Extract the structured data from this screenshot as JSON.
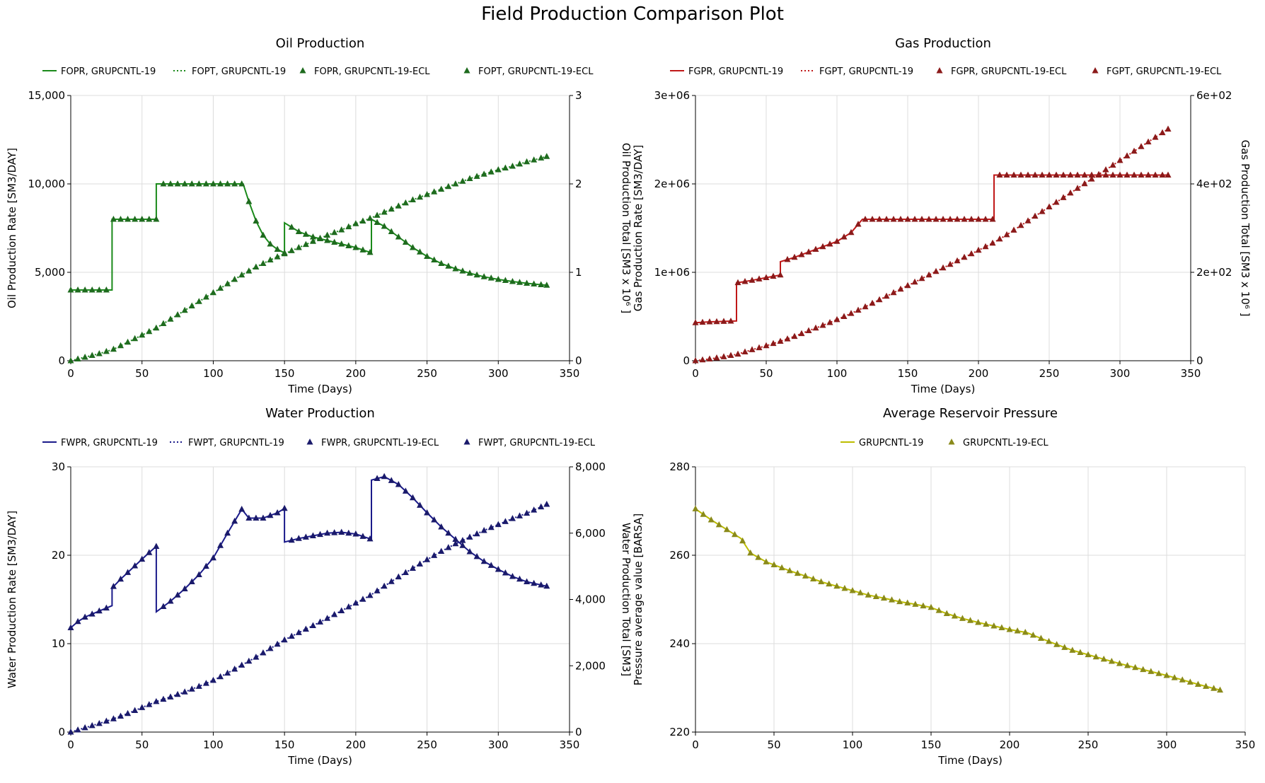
{
  "figure_title": "Field Production Comparison Plot",
  "chart_data": [
    {
      "id": "oil",
      "type": "line",
      "title": "Oil Production",
      "xlabel": "Time (Days)",
      "ylabel": "Oil Production Rate [SM3/DAY]",
      "y2label": "Oil Production Total [SM3 x 10⁶ ]",
      "xlim": [
        0,
        350
      ],
      "xticks": [
        0,
        50,
        100,
        150,
        200,
        250,
        300,
        350
      ],
      "xtick_labels": [
        "0",
        "50",
        "100",
        "150",
        "200",
        "250",
        "300",
        "350"
      ],
      "ylim": [
        0,
        15000
      ],
      "yticks": [
        0,
        5000,
        10000,
        15000
      ],
      "ytick_labels": [
        "0",
        "5,000",
        "10,000",
        "15,000"
      ],
      "y2lim": [
        0,
        3
      ],
      "y2ticks": [
        0,
        1,
        2,
        3
      ],
      "y2tick_labels": [
        "0",
        "1",
        "2",
        "3"
      ],
      "grid": true,
      "legend_position": "top",
      "color": "#1a8a1a",
      "marker_color": "#1e6b1e",
      "legend": [
        {
          "label": "FOPR, GRUPCNTL-19",
          "style": "line"
        },
        {
          "label": "FOPT, GRUPCNTL-19",
          "style": "dotted"
        },
        {
          "label": "FOPR, GRUPCNTL-19-ECL",
          "style": "marker"
        },
        {
          "label": "FOPT, GRUPCNTL-19-ECL",
          "style": "marker"
        }
      ],
      "rate_points": [
        [
          0,
          4000
        ],
        [
          29,
          4000
        ],
        [
          29,
          8000
        ],
        [
          60,
          8000
        ],
        [
          60,
          10000
        ],
        [
          121,
          10000
        ],
        [
          125,
          9000
        ],
        [
          130,
          7900
        ],
        [
          135,
          7100
        ],
        [
          140,
          6600
        ],
        [
          145,
          6300
        ],
        [
          150,
          6100
        ],
        [
          150,
          7800
        ],
        [
          160,
          7300
        ],
        [
          170,
          7000
        ],
        [
          180,
          6800
        ],
        [
          190,
          6600
        ],
        [
          200,
          6400
        ],
        [
          211,
          6100
        ],
        [
          211,
          8000
        ],
        [
          220,
          7600
        ],
        [
          230,
          7000
        ],
        [
          240,
          6400
        ],
        [
          250,
          5900
        ],
        [
          260,
          5500
        ],
        [
          270,
          5200
        ],
        [
          280,
          4950
        ],
        [
          290,
          4750
        ],
        [
          300,
          4600
        ],
        [
          310,
          4480
        ],
        [
          320,
          4380
        ],
        [
          334,
          4270
        ]
      ],
      "total_points": [
        [
          0,
          0
        ],
        [
          10,
          0.04
        ],
        [
          20,
          0.08
        ],
        [
          30,
          0.13
        ],
        [
          40,
          0.21
        ],
        [
          50,
          0.29
        ],
        [
          60,
          0.37
        ],
        [
          70,
          0.47
        ],
        [
          80,
          0.57
        ],
        [
          90,
          0.67
        ],
        [
          100,
          0.77
        ],
        [
          110,
          0.87
        ],
        [
          120,
          0.97
        ],
        [
          130,
          1.06
        ],
        [
          140,
          1.14
        ],
        [
          150,
          1.21
        ],
        [
          160,
          1.28
        ],
        [
          170,
          1.35
        ],
        [
          180,
          1.42
        ],
        [
          190,
          1.48
        ],
        [
          200,
          1.55
        ],
        [
          210,
          1.61
        ],
        [
          220,
          1.68
        ],
        [
          230,
          1.75
        ],
        [
          240,
          1.82
        ],
        [
          250,
          1.88
        ],
        [
          260,
          1.94
        ],
        [
          270,
          2.0
        ],
        [
          280,
          2.06
        ],
        [
          290,
          2.11
        ],
        [
          300,
          2.16
        ],
        [
          310,
          2.2
        ],
        [
          320,
          2.25
        ],
        [
          334,
          2.31
        ]
      ]
    },
    {
      "id": "gas",
      "type": "line",
      "title": "Gas Production",
      "xlabel": "Time (Days)",
      "ylabel": "Gas Production Rate [SM3/DAY]",
      "y2label": "Gas Production Total [SM3 x 10⁶ ]",
      "xlim": [
        0,
        350
      ],
      "xticks": [
        0,
        50,
        100,
        150,
        200,
        250,
        300,
        350
      ],
      "xtick_labels": [
        "0",
        "50",
        "100",
        "150",
        "200",
        "250",
        "300",
        "350"
      ],
      "ylim": [
        0,
        3000000
      ],
      "yticks": [
        0,
        1000000,
        2000000,
        3000000
      ],
      "ytick_labels": [
        "0",
        "1e+06",
        "2e+06",
        "3e+06"
      ],
      "y2lim": [
        0,
        600
      ],
      "y2ticks": [
        0,
        200,
        400,
        600
      ],
      "y2tick_labels": [
        "0",
        "2e+02",
        "4e+02",
        "6e+02"
      ],
      "grid": true,
      "legend_position": "top",
      "color": "#c01818",
      "marker_color": "#8b1a1a",
      "legend": [
        {
          "label": "FGPR, GRUPCNTL-19",
          "style": "line"
        },
        {
          "label": "FGPT, GRUPCNTL-19",
          "style": "dotted"
        },
        {
          "label": "FGPR, GRUPCNTL-19-ECL",
          "style": "marker"
        },
        {
          "label": "FGPT, GRUPCNTL-19-ECL",
          "style": "marker"
        }
      ],
      "rate_points": [
        [
          0,
          430000
        ],
        [
          10,
          440000
        ],
        [
          20,
          445000
        ],
        [
          29,
          450000
        ],
        [
          29,
          880000
        ],
        [
          40,
          910000
        ],
        [
          50,
          940000
        ],
        [
          60,
          970000
        ],
        [
          60,
          1120000
        ],
        [
          70,
          1170000
        ],
        [
          80,
          1230000
        ],
        [
          90,
          1290000
        ],
        [
          100,
          1350000
        ],
        [
          110,
          1450000
        ],
        [
          118,
          1600000
        ],
        [
          130,
          1600000
        ],
        [
          150,
          1600000
        ],
        [
          170,
          1600000
        ],
        [
          190,
          1600000
        ],
        [
          211,
          1600000
        ],
        [
          211,
          2100000
        ],
        [
          230,
          2100000
        ],
        [
          250,
          2100000
        ],
        [
          270,
          2100000
        ],
        [
          290,
          2100000
        ],
        [
          310,
          2100000
        ],
        [
          334,
          2100000
        ]
      ],
      "total_points": [
        [
          0,
          0
        ],
        [
          10,
          4
        ],
        [
          20,
          9
        ],
        [
          30,
          15
        ],
        [
          40,
          25
        ],
        [
          50,
          34
        ],
        [
          60,
          44
        ],
        [
          70,
          55
        ],
        [
          80,
          68
        ],
        [
          90,
          80
        ],
        [
          100,
          93
        ],
        [
          110,
          107
        ],
        [
          120,
          122
        ],
        [
          130,
          138
        ],
        [
          140,
          154
        ],
        [
          150,
          170
        ],
        [
          160,
          186
        ],
        [
          170,
          202
        ],
        [
          180,
          218
        ],
        [
          190,
          234
        ],
        [
          200,
          250
        ],
        [
          210,
          266
        ],
        [
          220,
          285
        ],
        [
          230,
          306
        ],
        [
          240,
          327
        ],
        [
          250,
          348
        ],
        [
          260,
          369
        ],
        [
          270,
          390
        ],
        [
          280,
          411
        ],
        [
          290,
          432
        ],
        [
          300,
          453
        ],
        [
          310,
          474
        ],
        [
          320,
          495
        ],
        [
          334,
          524
        ]
      ]
    },
    {
      "id": "water",
      "type": "line",
      "title": "Water Production",
      "xlabel": "Time (Days)",
      "ylabel": "Water Production Rate [SM3/DAY]",
      "y2label": "Water Production Total [SM3]",
      "xlim": [
        0,
        350
      ],
      "xticks": [
        0,
        50,
        100,
        150,
        200,
        250,
        300,
        350
      ],
      "xtick_labels": [
        "0",
        "50",
        "100",
        "150",
        "200",
        "250",
        "300",
        "350"
      ],
      "ylim": [
        0,
        30
      ],
      "yticks": [
        0,
        10,
        20,
        30
      ],
      "ytick_labels": [
        "0",
        "10",
        "20",
        "30"
      ],
      "y2lim": [
        0,
        8000
      ],
      "y2ticks": [
        0,
        2000,
        4000,
        6000,
        8000
      ],
      "y2tick_labels": [
        "0",
        "2,000",
        "4,000",
        "6,000",
        "8,000"
      ],
      "grid": true,
      "legend_position": "top",
      "color": "#1a1a8a",
      "marker_color": "#1a1a6b",
      "legend": [
        {
          "label": "FWPR, GRUPCNTL-19",
          "style": "line"
        },
        {
          "label": "FWPT, GRUPCNTL-19",
          "style": "dotted"
        },
        {
          "label": "FWPR, GRUPCNTL-19-ECL",
          "style": "marker"
        },
        {
          "label": "FWPT, GRUPCNTL-19-ECL",
          "style": "marker"
        }
      ],
      "rate_points": [
        [
          0,
          11.8
        ],
        [
          5,
          12.5
        ],
        [
          10,
          13.0
        ],
        [
          20,
          13.7
        ],
        [
          29,
          14.3
        ],
        [
          29,
          16.3
        ],
        [
          35,
          17.3
        ],
        [
          45,
          18.8
        ],
        [
          55,
          20.3
        ],
        [
          60,
          21.0
        ],
        [
          60,
          13.6
        ],
        [
          70,
          14.8
        ],
        [
          80,
          16.2
        ],
        [
          90,
          17.8
        ],
        [
          100,
          19.7
        ],
        [
          110,
          22.5
        ],
        [
          120,
          25.2
        ],
        [
          125,
          24.2
        ],
        [
          135,
          24.2
        ],
        [
          145,
          24.8
        ],
        [
          150,
          25.3
        ],
        [
          150,
          21.5
        ],
        [
          160,
          21.9
        ],
        [
          170,
          22.2
        ],
        [
          180,
          22.5
        ],
        [
          190,
          22.6
        ],
        [
          200,
          22.4
        ],
        [
          211,
          21.8
        ],
        [
          211,
          28.5
        ],
        [
          220,
          28.9
        ],
        [
          230,
          28.0
        ],
        [
          240,
          26.5
        ],
        [
          250,
          24.8
        ],
        [
          260,
          23.2
        ],
        [
          270,
          21.8
        ],
        [
          280,
          20.4
        ],
        [
          290,
          19.3
        ],
        [
          300,
          18.4
        ],
        [
          310,
          17.6
        ],
        [
          320,
          17.0
        ],
        [
          334,
          16.5
        ]
      ],
      "total_points": [
        [
          0,
          0
        ],
        [
          10,
          130
        ],
        [
          20,
          260
        ],
        [
          30,
          400
        ],
        [
          40,
          560
        ],
        [
          50,
          740
        ],
        [
          60,
          920
        ],
        [
          70,
          1060
        ],
        [
          80,
          1210
        ],
        [
          90,
          1380
        ],
        [
          100,
          1560
        ],
        [
          110,
          1780
        ],
        [
          120,
          2020
        ],
        [
          130,
          2260
        ],
        [
          140,
          2520
        ],
        [
          150,
          2780
        ],
        [
          160,
          3000
        ],
        [
          170,
          3210
        ],
        [
          180,
          3430
        ],
        [
          190,
          3660
        ],
        [
          200,
          3890
        ],
        [
          210,
          4120
        ],
        [
          220,
          4400
        ],
        [
          230,
          4680
        ],
        [
          240,
          4940
        ],
        [
          250,
          5200
        ],
        [
          260,
          5450
        ],
        [
          270,
          5680
        ],
        [
          280,
          5880
        ],
        [
          290,
          6080
        ],
        [
          300,
          6260
        ],
        [
          310,
          6440
        ],
        [
          320,
          6600
        ],
        [
          334,
          6870
        ]
      ]
    },
    {
      "id": "pressure",
      "type": "line",
      "title": "Average Reservoir Pressure",
      "xlabel": "Time (Days)",
      "ylabel": "Pressure average value [BARSA]",
      "xlim": [
        0,
        350
      ],
      "xticks": [
        0,
        50,
        100,
        150,
        200,
        250,
        300,
        350
      ],
      "xtick_labels": [
        "0",
        "50",
        "100",
        "150",
        "200",
        "250",
        "300",
        "350"
      ],
      "ylim": [
        220,
        280
      ],
      "yticks": [
        220,
        240,
        260,
        280
      ],
      "ytick_labels": [
        "220",
        "240",
        "260",
        "280"
      ],
      "grid": true,
      "legend_position": "top",
      "color": "#bdbd00",
      "marker_color": "#8a8a1a",
      "legend": [
        {
          "label": "GRUPCNTL-19",
          "style": "line"
        },
        {
          "label": "GRUPCNTL-19-ECL",
          "style": "marker"
        }
      ],
      "rate_points": [
        [
          0,
          270.5
        ],
        [
          10,
          268.0
        ],
        [
          20,
          265.8
        ],
        [
          29,
          263.8
        ],
        [
          35,
          260.5
        ],
        [
          45,
          258.5
        ],
        [
          60,
          256.5
        ],
        [
          70,
          255.3
        ],
        [
          80,
          254.0
        ],
        [
          90,
          253.0
        ],
        [
          100,
          252.0
        ],
        [
          110,
          251.0
        ],
        [
          120,
          250.3
        ],
        [
          130,
          249.5
        ],
        [
          140,
          248.9
        ],
        [
          150,
          248.2
        ],
        [
          160,
          246.8
        ],
        [
          170,
          245.7
        ],
        [
          180,
          244.8
        ],
        [
          190,
          244.0
        ],
        [
          200,
          243.2
        ],
        [
          211,
          242.5
        ],
        [
          220,
          241.2
        ],
        [
          230,
          239.8
        ],
        [
          240,
          238.5
        ],
        [
          250,
          237.5
        ],
        [
          260,
          236.5
        ],
        [
          270,
          235.5
        ],
        [
          280,
          234.6
        ],
        [
          290,
          233.7
        ],
        [
          300,
          232.8
        ],
        [
          310,
          231.8
        ],
        [
          320,
          230.8
        ],
        [
          334,
          229.5
        ]
      ]
    }
  ]
}
